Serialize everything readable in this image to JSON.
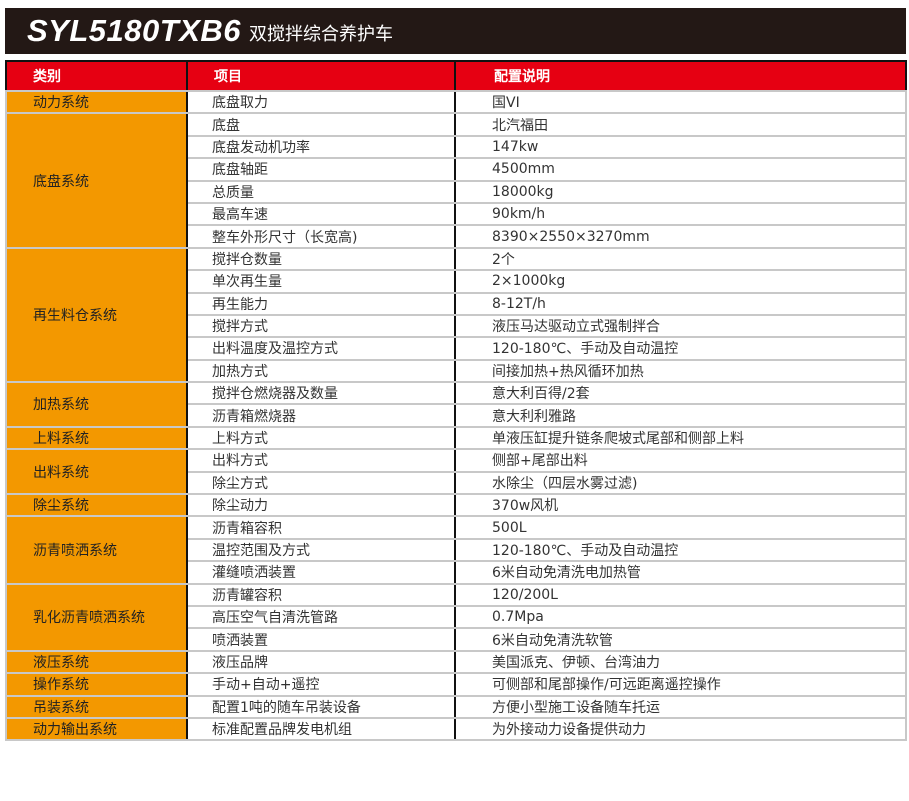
{
  "title": {
    "model": "SYL5180TXB6",
    "name": "双搅拌综合养护车"
  },
  "headers": [
    "类别",
    "项目",
    "配置说明"
  ],
  "colors": {
    "header_bg": "#e60012",
    "category_bg": "#f39800",
    "title_bg": "#231815"
  },
  "groups": [
    {
      "category": "动力系统",
      "rows": [
        [
          "底盘取力",
          "国VI"
        ]
      ]
    },
    {
      "category": "底盘系统",
      "rows": [
        [
          "底盘",
          "北汽福田"
        ],
        [
          "底盘发动机功率",
          "147kw"
        ],
        [
          "底盘轴距",
          "4500mm"
        ],
        [
          "总质量",
          "18000kg"
        ],
        [
          "最高车速",
          "90km/h"
        ],
        [
          "整车外形尺寸（长宽高)",
          "8390×2550×3270mm"
        ]
      ]
    },
    {
      "category": "再生料仓系统",
      "rows": [
        [
          "搅拌仓数量",
          "2个"
        ],
        [
          "单次再生量",
          "2×1000kg"
        ],
        [
          "再生能力",
          "8-12T/h"
        ],
        [
          "搅拌方式",
          "液压马达驱动立式强制拌合"
        ],
        [
          "出料温度及温控方式",
          "120-180℃、手动及自动温控"
        ],
        [
          "加热方式",
          "间接加热+热风循环加热"
        ]
      ]
    },
    {
      "category": "加热系统",
      "rows": [
        [
          "搅拌仓燃烧器及数量",
          "意大利百得/2套"
        ],
        [
          "沥青箱燃烧器",
          "意大利利雅路"
        ]
      ]
    },
    {
      "category": "上料系统",
      "rows": [
        [
          "上料方式",
          "单液压缸提升链条爬坡式尾部和侧部上料"
        ]
      ]
    },
    {
      "category": "出料系统",
      "rows": [
        [
          "出料方式",
          "侧部+尾部出料"
        ],
        [
          "除尘方式",
          "水除尘（四层水雾过滤)"
        ]
      ]
    },
    {
      "category": "除尘系统",
      "rows": [
        [
          "除尘动力",
          "370w风机"
        ]
      ]
    },
    {
      "category": "沥青喷洒系统",
      "rows": [
        [
          "沥青箱容积",
          "500L"
        ],
        [
          "温控范围及方式",
          "120-180℃、手动及自动温控"
        ],
        [
          "灌缝喷洒装置",
          "6米自动免清洗电加热管"
        ]
      ]
    },
    {
      "category": "乳化沥青喷洒系统",
      "rows": [
        [
          "沥青罐容积",
          "120/200L"
        ],
        [
          "高压空气自清洗管路",
          "0.7Mpa"
        ],
        [
          "喷洒装置",
          "6米自动免清洗软管"
        ]
      ]
    },
    {
      "category": "液压系统",
      "rows": [
        [
          "液压品牌",
          "美国派克、伊顿、台湾油力"
        ]
      ]
    },
    {
      "category": "操作系统",
      "rows": [
        [
          "手动+自动+遥控",
          "可侧部和尾部操作/可远距离遥控操作"
        ]
      ]
    },
    {
      "category": "吊装系统",
      "rows": [
        [
          "配置1吨的随车吊装设备",
          "方便小型施工设备随车托运"
        ]
      ]
    },
    {
      "category": "动力输出系统",
      "rows": [
        [
          "标准配置品牌发电机组",
          "为外接动力设备提供动力"
        ]
      ]
    }
  ]
}
